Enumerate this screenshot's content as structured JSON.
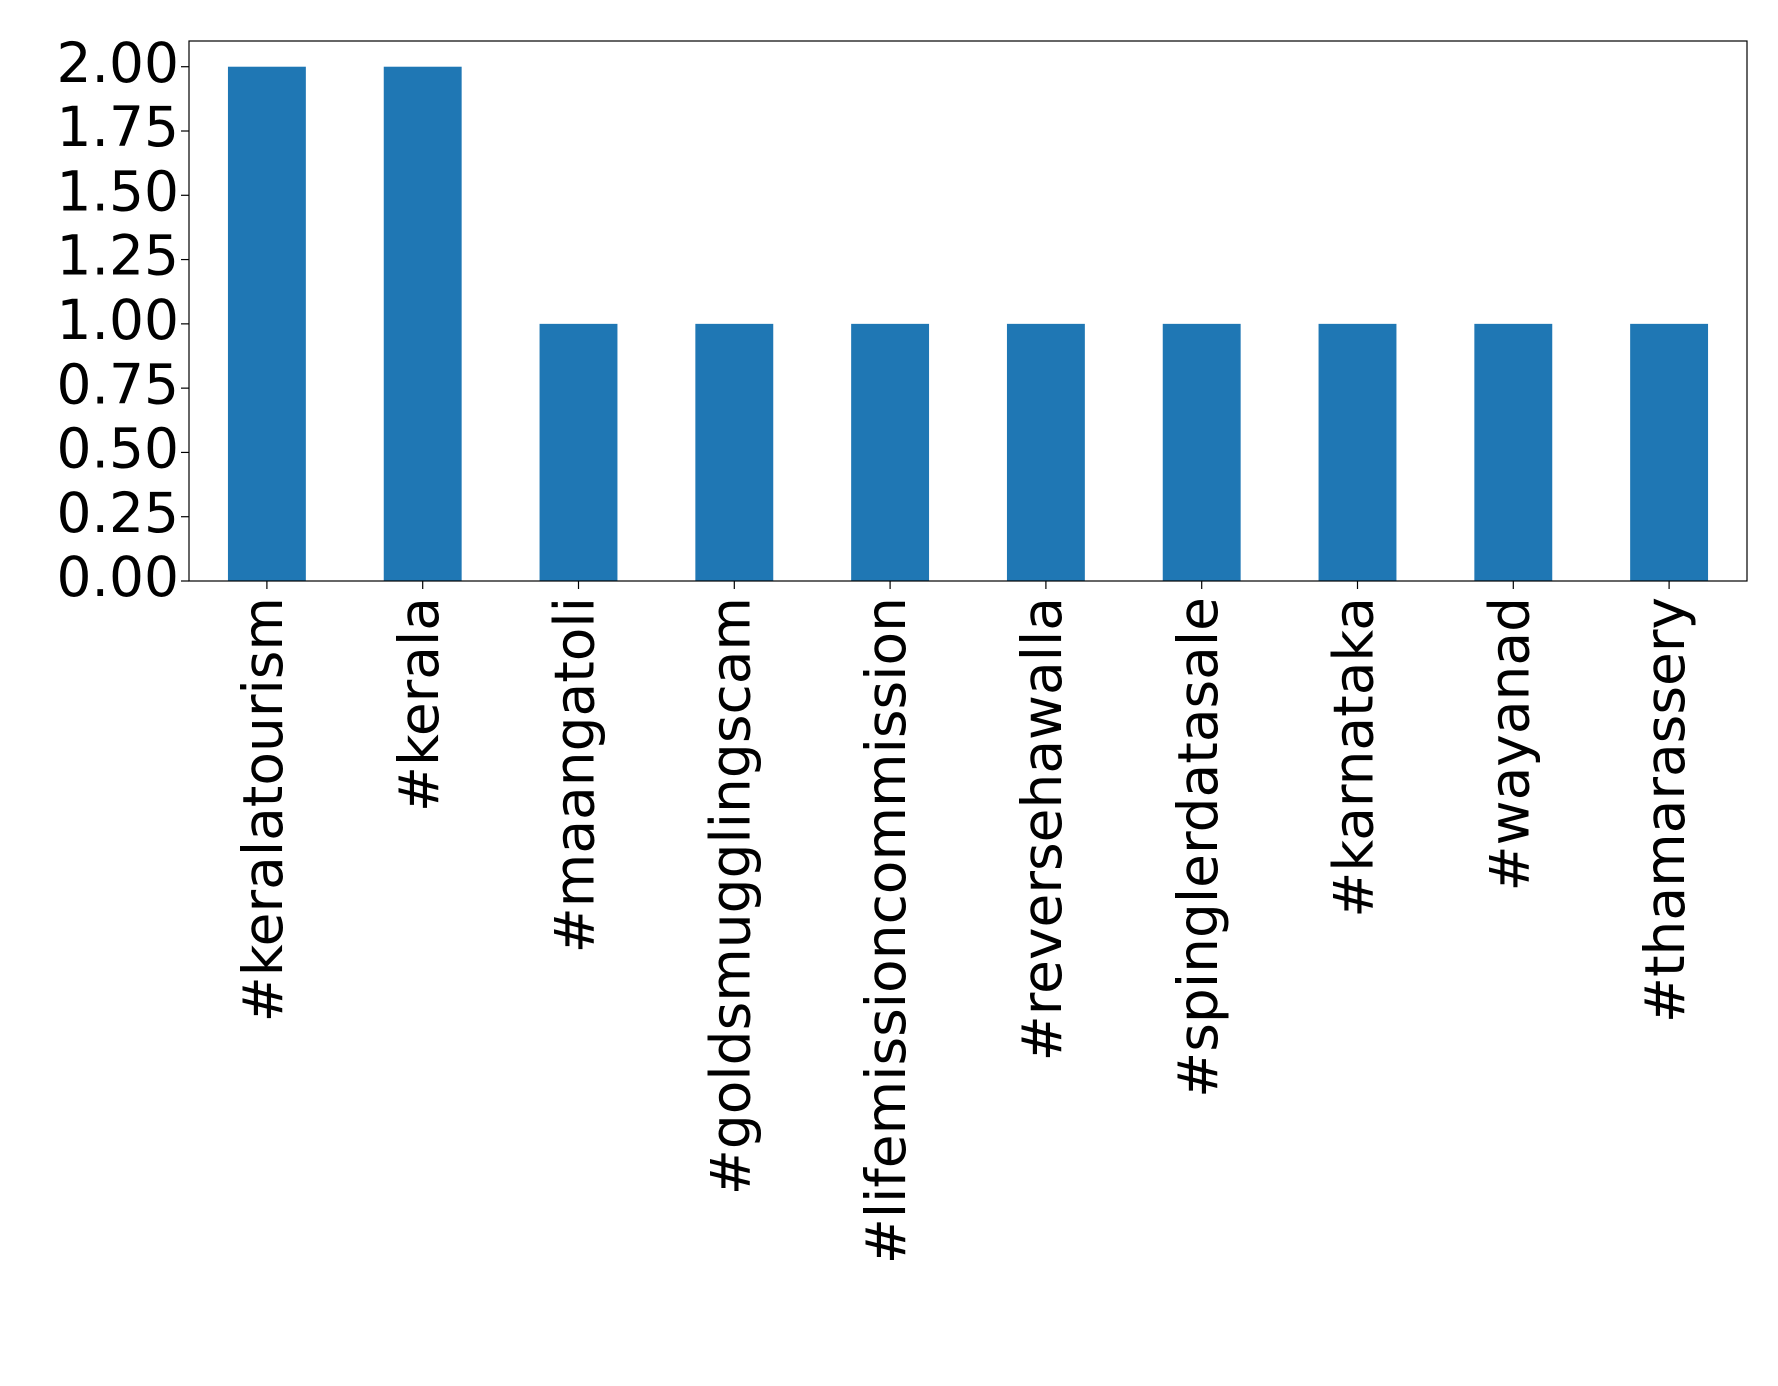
{
  "chart_data": {
    "type": "bar",
    "categories": [
      "#keralatourism",
      "#kerala",
      "#maangatoli",
      "#goldsmugglingscam",
      "#lifemissioncommission",
      "#reversehawalla",
      "#spinglerdatasale",
      "#karnataka",
      "#wayanad",
      "#thamarassery"
    ],
    "values": [
      2,
      2,
      1,
      1,
      1,
      1,
      1,
      1,
      1,
      1
    ],
    "color": "#1f77b4",
    "ylim": [
      0,
      2.1
    ],
    "yticks": [
      {
        "value": 0,
        "label": "0.00"
      },
      {
        "value": 0.25,
        "label": "0.25"
      },
      {
        "value": 0.5,
        "label": "0.50"
      },
      {
        "value": 0.75,
        "label": "0.75"
      },
      {
        "value": 1,
        "label": "1.00"
      },
      {
        "value": 1.25,
        "label": "1.25"
      },
      {
        "value": 1.5,
        "label": "1.50"
      },
      {
        "value": 1.75,
        "label": "1.75"
      },
      {
        "value": 2,
        "label": "2.00"
      }
    ],
    "grid": false
  }
}
